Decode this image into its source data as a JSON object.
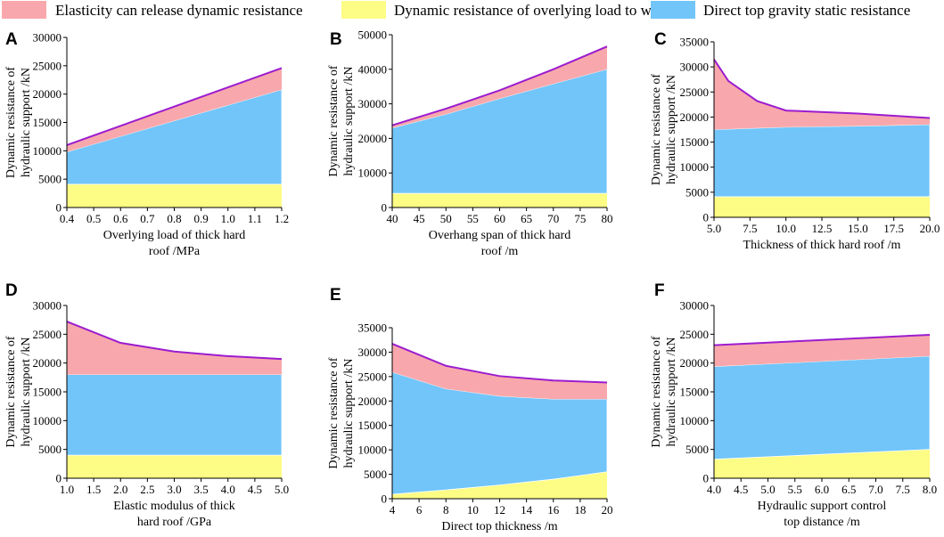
{
  "legend": {
    "position": "top",
    "items": [
      {
        "label": "Elasticity can release dynamic resistance",
        "color": "#f8a8ac"
      },
      {
        "label": "Dynamic resistance of overlying load to work",
        "color": "#fdfc84"
      },
      {
        "label": "Direct top gravity static resistance",
        "color": "#71c5f9"
      }
    ]
  },
  "colors": {
    "total_line": "#9c1ccf",
    "yellow": "#fdfc84",
    "blue": "#71c5f9",
    "pink": "#f8a8ac"
  },
  "chart_data": [
    {
      "type": "area",
      "panel": "A",
      "ylabel": [
        "Dynamic resistance of",
        "hydraulic support /kN"
      ],
      "xlabel": [
        "Overlying load of thick hard",
        "roof /MPa"
      ],
      "xlim": [
        0.4,
        1.2
      ],
      "ylim": [
        0,
        30000
      ],
      "xticks": [
        0.4,
        0.5,
        0.6,
        0.7,
        0.8,
        0.9,
        1.0,
        1.1,
        1.2
      ],
      "xtick_labels": [
        "0.4",
        "0.5",
        "0.6",
        "0.7",
        "0.8",
        "0.9",
        "1.0",
        "1.1",
        "1.2"
      ],
      "yticks": [
        0,
        5000,
        10000,
        15000,
        20000,
        25000,
        30000
      ],
      "ytick_labels": [
        "0",
        "5000",
        "10000",
        "15000",
        "20000",
        "25000",
        "30000"
      ],
      "x": [
        0.4,
        1.2
      ],
      "series": [
        {
          "name": "Dynamic resistance of overlying load to work",
          "values": [
            4100,
            4100
          ]
        },
        {
          "name": "Direct top gravity static resistance",
          "values": [
            9800,
            20800
          ]
        },
        {
          "name": "Elasticity can release dynamic resistance",
          "values": [
            11000,
            24600
          ]
        }
      ]
    },
    {
      "type": "area",
      "panel": "B",
      "ylabel": [
        "Dynamic resistance of",
        "hydraulic support /kN"
      ],
      "xlabel": [
        "Overhang span of thick hard",
        "roof /m"
      ],
      "xlim": [
        40,
        80
      ],
      "ylim": [
        0,
        50000
      ],
      "xticks": [
        40,
        45,
        50,
        55,
        60,
        65,
        70,
        75,
        80
      ],
      "xtick_labels": [
        "40",
        "45",
        "50",
        "55",
        "60",
        "65",
        "70",
        "75",
        "80"
      ],
      "yticks": [
        0,
        10000,
        20000,
        30000,
        40000,
        50000
      ],
      "ytick_labels": [
        "0",
        "10000",
        "20000",
        "30000",
        "40000",
        "50000"
      ],
      "x": [
        40,
        50,
        60,
        70,
        80
      ],
      "series": [
        {
          "name": "Dynamic resistance of overlying load to work",
          "values": [
            4100,
            4100,
            4100,
            4100,
            4100
          ]
        },
        {
          "name": "Direct top gravity static resistance",
          "values": [
            23000,
            27000,
            31500,
            35800,
            40000
          ]
        },
        {
          "name": "Elasticity can release dynamic resistance",
          "values": [
            23800,
            28600,
            33900,
            40000,
            46600
          ]
        }
      ]
    },
    {
      "type": "area",
      "panel": "C",
      "ylabel": [
        "Dynamic resistance of",
        "hydraulic support /kN"
      ],
      "xlabel": [
        "Thickness of thick hard roof /m"
      ],
      "xlim": [
        5,
        20
      ],
      "ylim": [
        0,
        35000
      ],
      "xticks": [
        5,
        7.5,
        10,
        12.5,
        15,
        17.5,
        20
      ],
      "xtick_labels": [
        "5.0",
        "7.5",
        "10.0",
        "12.5",
        "15.0",
        "17.5",
        "20.0"
      ],
      "yticks": [
        0,
        5000,
        10000,
        15000,
        20000,
        25000,
        30000,
        35000
      ],
      "ytick_labels": [
        "0",
        "5000",
        "10000",
        "15000",
        "20000",
        "25000",
        "30000",
        "35000"
      ],
      "x": [
        5,
        6,
        8,
        10,
        15,
        20
      ],
      "series": [
        {
          "name": "Dynamic resistance of overlying load to work",
          "values": [
            4100,
            4100,
            4100,
            4100,
            4100,
            4100
          ]
        },
        {
          "name": "Direct top gravity static resistance",
          "values": [
            17500,
            17600,
            17800,
            18000,
            18200,
            18500
          ]
        },
        {
          "name": "Elasticity can release dynamic resistance",
          "values": [
            31500,
            27200,
            23200,
            21300,
            20700,
            19800
          ]
        }
      ]
    },
    {
      "type": "area",
      "panel": "D",
      "ylabel": [
        "Dynamic resistance of",
        "hydraulic support /kN"
      ],
      "xlabel": [
        "Elastic modulus of thick",
        "hard roof /GPa"
      ],
      "xlim": [
        1,
        5
      ],
      "ylim": [
        0,
        30000
      ],
      "xticks": [
        1,
        1.5,
        2,
        2.5,
        3,
        3.5,
        4,
        4.5,
        5
      ],
      "xtick_labels": [
        "1.0",
        "1.5",
        "2.0",
        "2.5",
        "3.0",
        "3.5",
        "4.0",
        "4.5",
        "5.0"
      ],
      "yticks": [
        0,
        5000,
        10000,
        15000,
        20000,
        25000,
        30000
      ],
      "ytick_labels": [
        "0",
        "5000",
        "10000",
        "15000",
        "20000",
        "25000",
        "30000"
      ],
      "x": [
        1,
        2,
        3,
        4,
        5
      ],
      "series": [
        {
          "name": "Dynamic resistance of overlying load to work",
          "values": [
            4000,
            4000,
            4000,
            4000,
            4000
          ]
        },
        {
          "name": "Direct top gravity static resistance",
          "values": [
            18000,
            18000,
            18000,
            18000,
            18000
          ]
        },
        {
          "name": "Elasticity can release dynamic resistance",
          "values": [
            27200,
            23500,
            22000,
            21200,
            20700
          ]
        }
      ]
    },
    {
      "type": "area",
      "panel": "E",
      "ylabel": [
        "Dynamic resistance of",
        "hydraulic support /kN"
      ],
      "xlabel": [
        "Direct top thickness /m"
      ],
      "xlim": [
        4,
        20
      ],
      "ylim": [
        0,
        35000
      ],
      "xticks": [
        4,
        6,
        8,
        10,
        12,
        14,
        16,
        18,
        20
      ],
      "xtick_labels": [
        "4",
        "6",
        "8",
        "10",
        "12",
        "14",
        "16",
        "18",
        "20"
      ],
      "yticks": [
        0,
        5000,
        10000,
        15000,
        20000,
        25000,
        30000,
        35000
      ],
      "ytick_labels": [
        "0",
        "5000",
        "10000",
        "15000",
        "20000",
        "25000",
        "30000",
        "35000"
      ],
      "x": [
        4,
        8,
        12,
        16,
        20
      ],
      "series": [
        {
          "name": "Dynamic resistance of overlying load to work",
          "values": [
            900,
            1800,
            2800,
            4000,
            5500
          ]
        },
        {
          "name": "Direct top gravity static resistance",
          "values": [
            25900,
            22500,
            21000,
            20400,
            20400
          ]
        },
        {
          "name": "Elasticity can release dynamic resistance",
          "values": [
            31700,
            27200,
            25100,
            24200,
            23800
          ]
        }
      ]
    },
    {
      "type": "area",
      "panel": "F",
      "ylabel": [
        "Dynamic resistance of",
        "hydraulic support /kN"
      ],
      "xlabel": [
        "Hydraulic support control",
        "top distance /m"
      ],
      "xlim": [
        4,
        8
      ],
      "ylim": [
        0,
        30000
      ],
      "xticks": [
        4,
        4.5,
        5,
        5.5,
        6,
        6.5,
        7,
        7.5,
        8
      ],
      "xtick_labels": [
        "4.0",
        "4.5",
        "5.0",
        "5.5",
        "6.0",
        "6.5",
        "7.0",
        "7.5",
        "8.0"
      ],
      "yticks": [
        0,
        5000,
        10000,
        15000,
        20000,
        25000,
        30000
      ],
      "ytick_labels": [
        "0",
        "5000",
        "10000",
        "15000",
        "20000",
        "25000",
        "30000"
      ],
      "x": [
        4,
        8
      ],
      "series": [
        {
          "name": "Dynamic resistance of overlying load to work",
          "values": [
            3300,
            5000
          ]
        },
        {
          "name": "Direct top gravity static resistance",
          "values": [
            19400,
            21200
          ]
        },
        {
          "name": "Elasticity can release dynamic resistance",
          "values": [
            23100,
            24900
          ]
        }
      ]
    }
  ]
}
